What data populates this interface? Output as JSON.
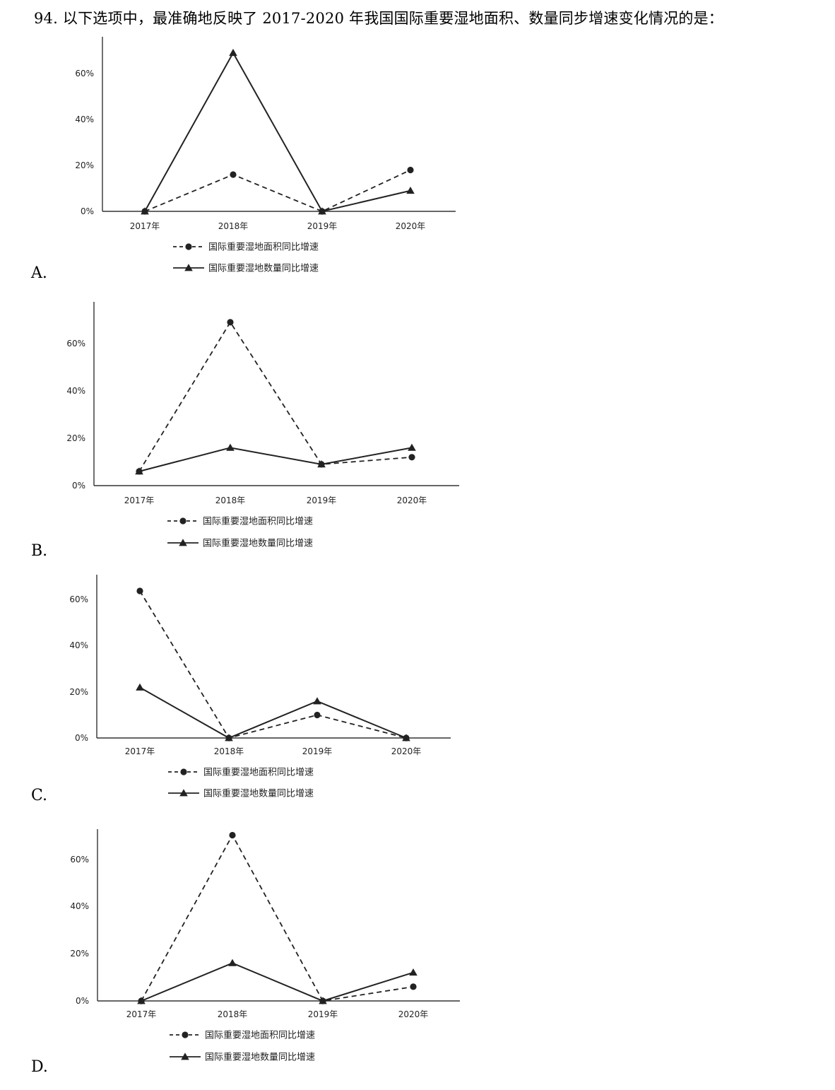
{
  "question": "94. 以下选项中，最准确地反映了 2017-2020 年我国国际重要湿地面积、数量同步增速变化情况的是：",
  "colors": {
    "line": "#222222",
    "axis": "#333333"
  },
  "chart_data": [
    {
      "option": "A.",
      "type": "line",
      "categories": [
        "2017年",
        "2018年",
        "2019年",
        "2020年"
      ],
      "yticks": [
        "0%",
        "20%",
        "40%",
        "60%"
      ],
      "ylim": [
        0,
        75
      ],
      "series": [
        {
          "name": "国际重要湿地面积同比增速",
          "values": [
            0,
            16,
            0,
            18
          ],
          "style": "dashed",
          "marker": "circle"
        },
        {
          "name": "国际重要湿地数量同比增速",
          "values": [
            0,
            69,
            0,
            9
          ],
          "style": "solid",
          "marker": "triangle"
        }
      ]
    },
    {
      "option": "B.",
      "type": "line",
      "categories": [
        "2017年",
        "2018年",
        "2019年",
        "2020年"
      ],
      "yticks": [
        "0%",
        "20%",
        "40%",
        "60%"
      ],
      "ylim": [
        0,
        78
      ],
      "series": [
        {
          "name": "国际重要湿地面积同比增速",
          "values": [
            6,
            69,
            9,
            12
          ],
          "style": "dashed",
          "marker": "circle"
        },
        {
          "name": "国际重要湿地数量同比增速",
          "values": [
            6,
            16,
            9,
            16
          ],
          "style": "solid",
          "marker": "triangle"
        }
      ]
    },
    {
      "option": "C.",
      "type": "line",
      "categories": [
        "2017年",
        "2018年",
        "2019年",
        "2020年"
      ],
      "yticks": [
        "0%",
        "20%",
        "40%",
        "60%"
      ],
      "ylim": [
        0,
        71
      ],
      "series": [
        {
          "name": "国际重要湿地面积同比增速",
          "values": [
            64,
            0,
            10,
            0
          ],
          "style": "dashed",
          "marker": "circle"
        },
        {
          "name": "国际重要湿地数量同比增速",
          "values": [
            22,
            0,
            16,
            0
          ],
          "style": "solid",
          "marker": "triangle"
        }
      ]
    },
    {
      "option": "D.",
      "type": "line",
      "categories": [
        "2017年",
        "2018年",
        "2019年",
        "2020年"
      ],
      "yticks": [
        "0%",
        "20%",
        "40%",
        "60%"
      ],
      "ylim": [
        0,
        73
      ],
      "series": [
        {
          "name": "国际重要湿地面积同比增速",
          "values": [
            0,
            70,
            0,
            6
          ],
          "style": "dashed",
          "marker": "circle"
        },
        {
          "name": "国际重要湿地数量同比增速",
          "values": [
            0,
            16,
            0,
            12
          ],
          "style": "solid",
          "marker": "triangle"
        }
      ]
    }
  ]
}
